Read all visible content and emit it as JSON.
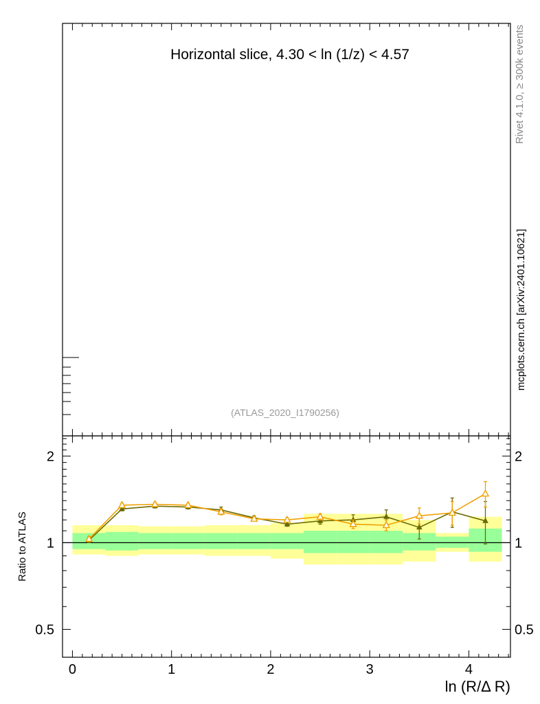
{
  "main_panel": {
    "title": "Horizontal slice, 4.30 < ln (1/z) < 4.57",
    "watermark": "(ATLAS_2020_I1790256)"
  },
  "side_labels": {
    "rivet": "Rivet 4.1.0, ≥ 300k events",
    "mcplots": "mcplots.cern.ch [arXiv:2401.10621]"
  },
  "colors": {
    "band_inner": "#99ff99",
    "band_outer": "#ffff99",
    "series_dark": "#6b6b00",
    "series_orange": "#f0a000",
    "axis": "#000000",
    "text_gray": "#888888"
  },
  "chart_data": {
    "type": "line",
    "xlabel": "ln (R/Δ R)",
    "ylabel": "Ratio to ATLAS",
    "xlim": [
      -0.1,
      4.42
    ],
    "ylim": [
      0.4,
      2.35
    ],
    "y_scale": "log",
    "x_ticks": [
      0,
      1,
      2,
      3,
      4
    ],
    "x_tick_labels": [
      "0",
      "1",
      "2",
      "3",
      "4"
    ],
    "y_ticks": [
      0.5,
      1,
      2
    ],
    "y_tick_labels": [
      "0.5",
      "1",
      "2"
    ],
    "reference_line": 1,
    "bins": [
      [
        0.0,
        0.333
      ],
      [
        0.333,
        0.667
      ],
      [
        0.667,
        1.0
      ],
      [
        1.0,
        1.333
      ],
      [
        1.333,
        1.667
      ],
      [
        1.667,
        2.0
      ],
      [
        2.0,
        2.333
      ],
      [
        2.333,
        2.667
      ],
      [
        2.667,
        3.0
      ],
      [
        3.0,
        3.333
      ],
      [
        3.333,
        3.667
      ],
      [
        3.667,
        4.0
      ],
      [
        4.0,
        4.333
      ]
    ],
    "band_inner": [
      [
        0.95,
        1.08
      ],
      [
        0.94,
        1.09
      ],
      [
        0.95,
        1.08
      ],
      [
        0.95,
        1.08
      ],
      [
        0.95,
        1.08
      ],
      [
        0.95,
        1.08
      ],
      [
        0.95,
        1.08
      ],
      [
        0.92,
        1.1
      ],
      [
        0.92,
        1.1
      ],
      [
        0.92,
        1.1
      ],
      [
        0.94,
        1.08
      ],
      [
        0.96,
        1.05
      ],
      [
        0.93,
        1.12
      ]
    ],
    "band_outer": [
      [
        0.91,
        1.15
      ],
      [
        0.9,
        1.15
      ],
      [
        0.91,
        1.14
      ],
      [
        0.91,
        1.14
      ],
      [
        0.9,
        1.15
      ],
      [
        0.9,
        1.15
      ],
      [
        0.88,
        1.17
      ],
      [
        0.84,
        1.26
      ],
      [
        0.84,
        1.26
      ],
      [
        0.84,
        1.26
      ],
      [
        0.86,
        1.2
      ],
      [
        0.93,
        1.08
      ],
      [
        0.86,
        1.23
      ]
    ],
    "x": [
      0.167,
      0.5,
      0.833,
      1.167,
      1.5,
      1.833,
      2.167,
      2.5,
      2.833,
      3.167,
      3.5,
      3.833,
      4.167
    ],
    "series": [
      {
        "marker": "star",
        "color": "#6b6b00",
        "values": [
          1.02,
          1.31,
          1.34,
          1.33,
          1.3,
          1.22,
          1.16,
          1.19,
          1.2,
          1.23,
          1.13,
          1.28,
          1.19
        ],
        "errors": [
          0.02,
          0.02,
          0.02,
          0.02,
          0.03,
          0.02,
          0.02,
          0.03,
          0.05,
          0.07,
          0.1,
          0.15,
          0.2
        ]
      },
      {
        "marker": "triangle",
        "color": "#f0a000",
        "values": [
          1.03,
          1.35,
          1.36,
          1.35,
          1.28,
          1.21,
          1.2,
          1.23,
          1.16,
          1.15,
          1.24,
          1.27,
          1.48
        ],
        "errors": [
          0.02,
          0.02,
          0.02,
          0.02,
          0.03,
          0.02,
          0.02,
          0.03,
          0.04,
          0.05,
          0.08,
          0.12,
          0.15
        ]
      }
    ]
  }
}
